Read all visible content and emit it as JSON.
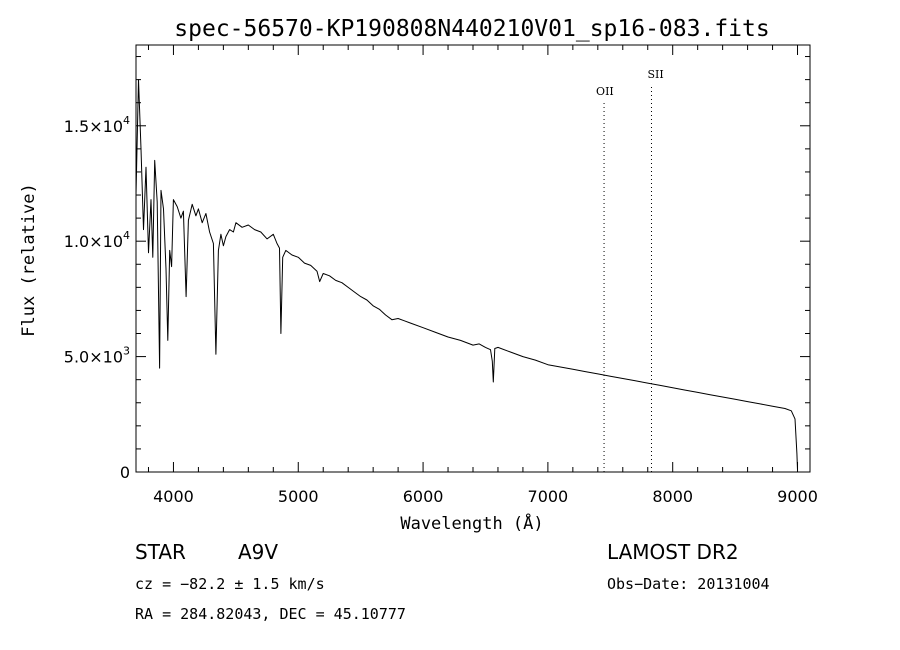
{
  "chart_data": {
    "type": "line",
    "title": "spec-56570-KP190808N440210V01_sp16-083.fits",
    "xlabel": "Wavelength (Å)",
    "ylabel": "Flux (relative)",
    "xlim": [
      3700,
      9100
    ],
    "ylim": [
      0,
      18500
    ],
    "x_ticks": [
      4000,
      5000,
      6000,
      7000,
      8000,
      9000
    ],
    "x_tick_labels": [
      "4000",
      "5000",
      "6000",
      "7000",
      "8000",
      "9000"
    ],
    "y_ticks": [
      0,
      5000,
      10000,
      15000
    ],
    "y_tick_labels": [
      {
        "mantissa": "0",
        "exp": ""
      },
      {
        "mantissa": "5.0×10",
        "exp": "3"
      },
      {
        "mantissa": "1.0×10",
        "exp": "4"
      },
      {
        "mantissa": "1.5×10",
        "exp": "4"
      }
    ],
    "grid": false,
    "series": [
      {
        "x": [
          3700,
          3720,
          3740,
          3760,
          3780,
          3800,
          3820,
          3835,
          3850,
          3870,
          3889,
          3900,
          3920,
          3940,
          3955,
          3970,
          3985,
          4000,
          4030,
          4060,
          4080,
          4101,
          4120,
          4150,
          4180,
          4200,
          4230,
          4260,
          4290,
          4320,
          4340,
          4360,
          4380,
          4400,
          4420,
          4450,
          4480,
          4500,
          4550,
          4600,
          4650,
          4700,
          4750,
          4800,
          4830,
          4850,
          4861,
          4875,
          4900,
          4950,
          5000,
          5050,
          5100,
          5150,
          5172,
          5200,
          5250,
          5300,
          5350,
          5400,
          5450,
          5500,
          5550,
          5600,
          5650,
          5700,
          5750,
          5800,
          5850,
          5900,
          6000,
          6100,
          6200,
          6300,
          6400,
          6450,
          6500,
          6540,
          6555,
          6563,
          6575,
          6600,
          6700,
          6800,
          6900,
          7000,
          7100,
          7200,
          7300,
          7400,
          7500,
          7600,
          7700,
          7800,
          7900,
          8000,
          8100,
          8200,
          8300,
          8400,
          8500,
          8600,
          8700,
          8800,
          8850,
          8900,
          8950,
          8980,
          8995,
          9000
        ],
        "y": [
          12000,
          17000,
          14000,
          10500,
          13200,
          9500,
          11800,
          9300,
          13500,
          11700,
          4500,
          12200,
          11400,
          8800,
          5700,
          9600,
          8900,
          11800,
          11500,
          11000,
          11300,
          7600,
          10900,
          11600,
          11100,
          11400,
          10800,
          11200,
          10400,
          9900,
          5100,
          9600,
          10300,
          9800,
          10200,
          10500,
          10400,
          10800,
          10600,
          10700,
          10500,
          10400,
          10100,
          10300,
          9900,
          9700,
          6000,
          9300,
          9600,
          9400,
          9300,
          9050,
          8950,
          8700,
          8250,
          8600,
          8500,
          8300,
          8200,
          8000,
          7800,
          7600,
          7450,
          7200,
          7050,
          6800,
          6600,
          6650,
          6550,
          6450,
          6250,
          6050,
          5850,
          5700,
          5500,
          5550,
          5400,
          5300,
          4800,
          3900,
          5350,
          5400,
          5200,
          5000,
          4850,
          4650,
          4550,
          4450,
          4350,
          4250,
          4150,
          4050,
          3950,
          3850,
          3750,
          3650,
          3550,
          3450,
          3350,
          3250,
          3150,
          3050,
          2950,
          2850,
          2800,
          2750,
          2650,
          2300,
          800,
          100
        ]
      }
    ],
    "annotations": [
      {
        "label": "OII",
        "x": 7450
      },
      {
        "label": "SII",
        "x": 7830
      }
    ]
  },
  "info": {
    "object_type": "STAR",
    "subclass": "A9V",
    "survey": "LAMOST DR2",
    "cz": "cz = −82.2 ± 1.5 km/s",
    "obs_date": "Obs−Date: 20131004",
    "coords": "RA = 284.82043, DEC =  45.10777"
  }
}
